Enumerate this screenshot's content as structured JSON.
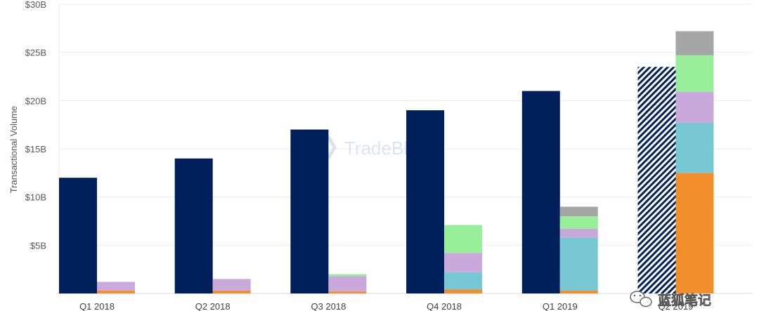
{
  "chart_data": {
    "type": "bar",
    "title": "",
    "ylabel": "Transactional Volume",
    "xlabel": "",
    "ylim": [
      0,
      30
    ],
    "yticks": [
      "",
      "$5B",
      "$10B",
      "$15B",
      "$20B",
      "$25B",
      "$30B"
    ],
    "ytick_values": [
      0,
      5,
      10,
      15,
      20,
      25,
      30
    ],
    "categories": [
      "Q1 2018",
      "Q2 2018",
      "Q3 2018",
      "Q4 2018",
      "Q1 2019",
      "Q2 2019"
    ],
    "primary_series": {
      "color": "#00205b",
      "values": [
        12.0,
        14.0,
        17.0,
        19.0,
        21.0,
        23.5
      ],
      "hatched_last": true
    },
    "stacked_series": [
      {
        "color": "#f28e2b",
        "values": [
          0.3,
          0.3,
          0.2,
          0.4,
          0.3,
          12.5
        ]
      },
      {
        "color": "#78c7d5",
        "values": [
          0.0,
          0.0,
          0.0,
          1.8,
          5.5,
          5.2
        ]
      },
      {
        "color": "#c9a8dc",
        "values": [
          0.9,
          1.2,
          1.6,
          2.0,
          0.9,
          3.2
        ]
      },
      {
        "color": "#98ee99",
        "values": [
          0.0,
          0.0,
          0.2,
          2.9,
          1.3,
          3.8
        ]
      },
      {
        "color": "#a6a6a6",
        "values": [
          0.0,
          0.0,
          0.0,
          0.0,
          1.0,
          2.5
        ]
      }
    ],
    "grid": true,
    "legend": "none"
  },
  "watermark": {
    "text": "TradeBlock",
    "icon": "hexagon-logo-icon"
  },
  "wechat_mark": {
    "text": "蓝狐笔记",
    "icon": "wechat-icon"
  }
}
